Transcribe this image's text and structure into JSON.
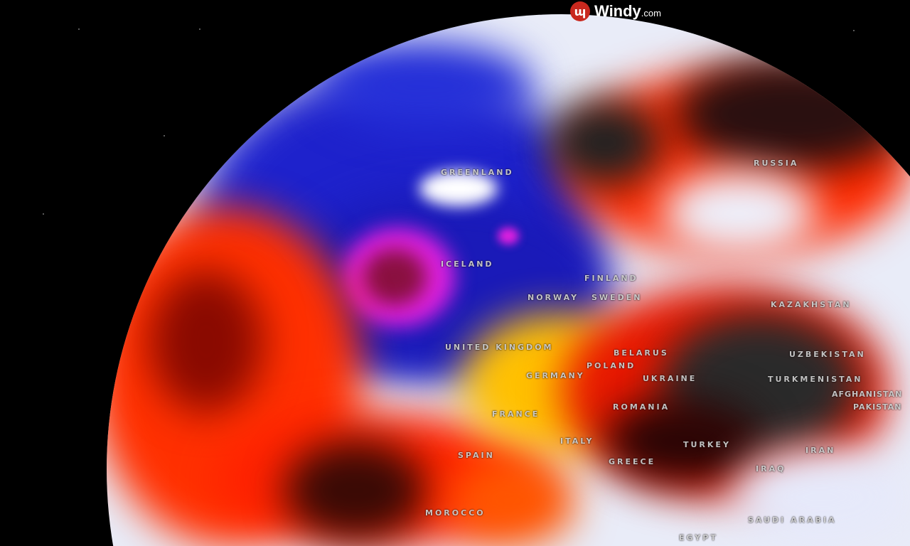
{
  "brand": {
    "name": "Windy",
    "suffix": ".com",
    "icon": "windy-logo-icon",
    "color": "#c8281e"
  },
  "map": {
    "layer_colors": {
      "cold": "#1a1fd0",
      "very_cold": "#e020e0",
      "neutral": "#eef0fb",
      "warm": "#ffe800",
      "hot": "#ff2a00",
      "very_hot": "#3a3a3a"
    },
    "labels": [
      "GREENLAND",
      "RUSSIA",
      "ICELAND",
      "FINLAND",
      "NORWAY",
      "SWEDEN",
      "KAZAKHSTAN",
      "UNITED KINGDOM",
      "BELARUS",
      "POLAND",
      "GERMANY",
      "UKRAINE",
      "UZBEKISTAN",
      "TURKMENISTAN",
      "AFGHANISTAN",
      "PAKISTAN",
      "FRANCE",
      "ROMANIA",
      "SPAIN",
      "ITALY",
      "TURKEY",
      "GREECE",
      "IRAN",
      "IRAQ",
      "MOROCCO",
      "SAUDI ARABIA",
      "EGYPT"
    ]
  }
}
